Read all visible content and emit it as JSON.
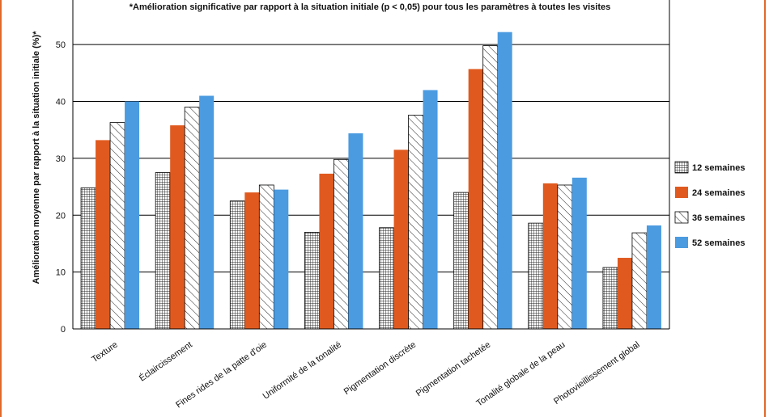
{
  "chart_data": {
    "type": "bar",
    "title": "",
    "note": "*Amélioration significative par rapport à la situation initiale (p < 0,05) pour tous les paramètres à toutes les visites",
    "ylabel": "Amélioration moyenne par rapport à la situation initiale (%)*",
    "xlabel": "",
    "ylim": [
      0,
      55
    ],
    "yticks": [
      0,
      10,
      20,
      30,
      40,
      50
    ],
    "grid": true,
    "legend_position": "right",
    "categories": [
      "Texture",
      "Éclaircissement",
      "Fines rides de la patte d'oie",
      "Uniformité de la tonalité",
      "Pigmentation discrète",
      "Pigmentation tachetée",
      "Tonalité globale de la peau",
      "Photovieillissement global"
    ],
    "series": [
      {
        "name": "12 semaines",
        "pattern": "grid",
        "color": "#ffffff",
        "values": [
          24.8,
          27.5,
          22.5,
          17.0,
          17.8,
          24.0,
          18.6,
          10.8
        ]
      },
      {
        "name": "24 semaines",
        "pattern": "solid",
        "color": "#e05a1f",
        "values": [
          33.2,
          35.8,
          24.0,
          27.3,
          31.5,
          45.7,
          25.6,
          12.5
        ]
      },
      {
        "name": "36 semaines",
        "pattern": "hatch",
        "color": "#ffffff",
        "values": [
          36.3,
          39.0,
          25.3,
          29.8,
          37.6,
          49.8,
          25.3,
          16.9
        ]
      },
      {
        "name": "52 semaines",
        "pattern": "solid",
        "color": "#4b9be0",
        "values": [
          40.0,
          41.0,
          24.5,
          34.4,
          42.0,
          52.2,
          26.6,
          18.2
        ]
      }
    ]
  }
}
